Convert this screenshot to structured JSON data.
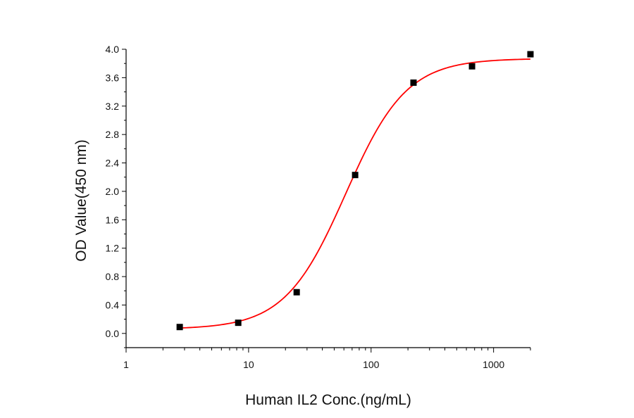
{
  "chart_data": {
    "type": "scatter",
    "title": "",
    "xlabel": "Human IL2 Conc.(ng/mL)",
    "ylabel": "OD Value(450 nm)",
    "x_scale": "log",
    "xlim": [
      1,
      2000
    ],
    "ylim": [
      -0.2,
      4.0
    ],
    "x_ticks": [
      1,
      10,
      100,
      1000
    ],
    "x_tick_labels": [
      "1",
      "10",
      "100",
      "1000"
    ],
    "y_ticks": [
      0.0,
      0.4,
      0.8,
      1.2,
      1.6,
      2.0,
      2.4,
      2.8,
      3.2,
      3.6,
      4.0
    ],
    "y_tick_labels": [
      "0.0",
      "0.4",
      "0.8",
      "1.2",
      "1.6",
      "2.0",
      "2.4",
      "2.8",
      "3.2",
      "3.6",
      "4.0"
    ],
    "grid": false,
    "series": [
      {
        "kind": "points",
        "marker": "square",
        "color": "#000000",
        "x": [
          2.74,
          8.23,
          24.7,
          74.1,
          222,
          667,
          2000
        ],
        "y": [
          0.09,
          0.15,
          0.58,
          2.23,
          3.53,
          3.76,
          3.93
        ]
      },
      {
        "kind": "fit-curve",
        "color": "#ff0000",
        "model": "4PL",
        "bottom": 0.06,
        "top": 3.87,
        "ec50": 62,
        "hill": 1.75,
        "x_range": [
          2.74,
          2000
        ]
      }
    ]
  }
}
